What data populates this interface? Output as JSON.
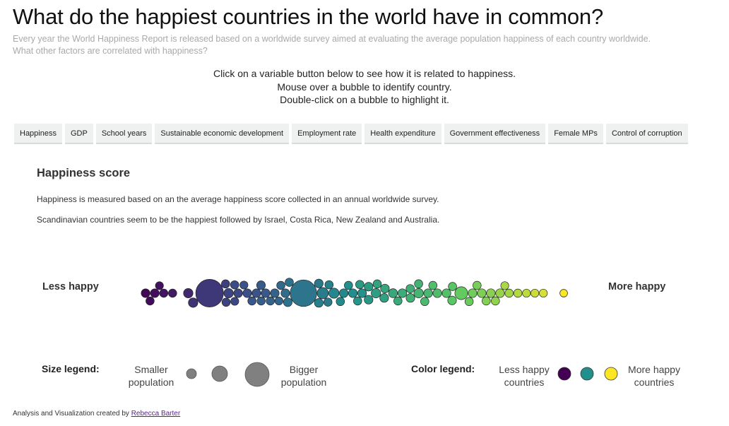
{
  "page": {
    "title": "What do the happiest countries in the world have in common?",
    "subtitle_line1": "Every year the World Happiness Report is released based on a worldwide survey aimed at evaluating the average population happiness of each country worldwide.",
    "subtitle_line2": "What other factors are correlated with happiness?",
    "instructions": [
      "Click on a variable button below to see how it is related to happiness.",
      "Mouse over a bubble to identify country.",
      "Double-click on a bubble to highlight it."
    ]
  },
  "buttons": [
    "Happiness",
    "GDP",
    "School years",
    "Sustainable economic development",
    "Employment rate",
    "Health expenditure",
    "Government effectiveness",
    "Female MPs",
    "Control of corruption"
  ],
  "section": {
    "heading": "Happiness score",
    "desc1": "Happiness is measured based on an the average happiness score collected in an annual worldwide survey.",
    "desc2": "Scandinavian countries seem to be the happiest followed by Israel, Costa Rica, New Zealand and Australia."
  },
  "chart_data": {
    "type": "scatter",
    "variable": "Happiness score",
    "left_label": "Less happy",
    "right_label": "More happy",
    "encoding": {
      "x": "happiness (low to high)",
      "color": "happiness",
      "size": "population"
    },
    "color_scale": [
      "#440154",
      "#3b528b",
      "#21908d",
      "#5dc962",
      "#fde725"
    ],
    "bubbles": [
      {
        "h": 0.02,
        "s": 0.6
      },
      {
        "h": 0.04,
        "s": 0.6
      },
      {
        "h": 0.03,
        "s": 0.55
      },
      {
        "h": 0.06,
        "s": 0.55
      },
      {
        "h": 0.05,
        "s": 0.5
      },
      {
        "h": 0.08,
        "s": 0.55
      },
      {
        "h": 0.17,
        "s": 6.0
      },
      {
        "h": 0.12,
        "s": 0.7
      },
      {
        "h": 0.15,
        "s": 0.7
      },
      {
        "h": 0.19,
        "s": 0.55
      },
      {
        "h": 0.22,
        "s": 0.5
      },
      {
        "h": 0.2,
        "s": 0.55
      },
      {
        "h": 0.22,
        "s": 0.6
      },
      {
        "h": 0.21,
        "s": 0.7
      },
      {
        "h": 0.24,
        "s": 0.6
      },
      {
        "h": 0.23,
        "s": 0.55
      },
      {
        "h": 0.25,
        "s": 0.5
      },
      {
        "h": 0.26,
        "s": 0.6
      },
      {
        "h": 0.27,
        "s": 0.55
      },
      {
        "h": 0.28,
        "s": 0.6
      },
      {
        "h": 0.29,
        "s": 0.6
      },
      {
        "h": 0.3,
        "s": 0.55
      },
      {
        "h": 0.31,
        "s": 0.6
      },
      {
        "h": 0.32,
        "s": 0.55
      },
      {
        "h": 0.33,
        "s": 0.5
      },
      {
        "h": 0.34,
        "s": 0.55
      },
      {
        "h": 0.39,
        "s": 5.5
      },
      {
        "h": 0.36,
        "s": 0.6
      },
      {
        "h": 0.37,
        "s": 0.55
      },
      {
        "h": 0.38,
        "s": 0.6
      },
      {
        "h": 0.4,
        "s": 0.6
      },
      {
        "h": 0.41,
        "s": 0.55
      },
      {
        "h": 0.42,
        "s": 1.0
      },
      {
        "h": 0.43,
        "s": 0.6
      },
      {
        "h": 0.44,
        "s": 0.55
      },
      {
        "h": 0.46,
        "s": 0.8
      },
      {
        "h": 0.47,
        "s": 0.6
      },
      {
        "h": 0.48,
        "s": 0.55
      },
      {
        "h": 0.49,
        "s": 0.6
      },
      {
        "h": 0.5,
        "s": 0.55
      },
      {
        "h": 0.51,
        "s": 0.6
      },
      {
        "h": 0.52,
        "s": 0.55
      },
      {
        "h": 0.53,
        "s": 0.6
      },
      {
        "h": 0.54,
        "s": 0.55
      },
      {
        "h": 0.55,
        "s": 0.6
      },
      {
        "h": 0.56,
        "s": 0.7
      },
      {
        "h": 0.57,
        "s": 0.6
      },
      {
        "h": 0.58,
        "s": 0.55
      },
      {
        "h": 0.59,
        "s": 0.6
      },
      {
        "h": 0.6,
        "s": 0.65
      },
      {
        "h": 0.61,
        "s": 0.55
      },
      {
        "h": 0.62,
        "s": 0.6
      },
      {
        "h": 0.63,
        "s": 0.55
      },
      {
        "h": 0.64,
        "s": 0.6
      },
      {
        "h": 0.65,
        "s": 0.55
      },
      {
        "h": 0.66,
        "s": 0.7
      },
      {
        "h": 0.67,
        "s": 0.6
      },
      {
        "h": 0.68,
        "s": 0.55
      },
      {
        "h": 0.69,
        "s": 0.6
      },
      {
        "h": 0.7,
        "s": 0.55
      },
      {
        "h": 0.71,
        "s": 0.6
      },
      {
        "h": 0.73,
        "s": 0.55
      },
      {
        "h": 0.74,
        "s": 0.6
      },
      {
        "h": 0.76,
        "s": 1.3
      },
      {
        "h": 0.77,
        "s": 0.55
      },
      {
        "h": 0.78,
        "s": 0.6
      },
      {
        "h": 0.79,
        "s": 0.55
      },
      {
        "h": 0.8,
        "s": 0.6
      },
      {
        "h": 0.81,
        "s": 0.55
      },
      {
        "h": 0.82,
        "s": 0.6
      },
      {
        "h": 0.83,
        "s": 0.55
      },
      {
        "h": 0.84,
        "s": 0.6
      },
      {
        "h": 0.86,
        "s": 0.55
      },
      {
        "h": 0.87,
        "s": 0.5
      },
      {
        "h": 0.88,
        "s": 0.55
      },
      {
        "h": 0.9,
        "s": 0.5
      },
      {
        "h": 0.92,
        "s": 0.5
      },
      {
        "h": 0.94,
        "s": 0.5
      },
      {
        "h": 1.0,
        "s": 0.45
      }
    ]
  },
  "legend": {
    "size_title": "Size legend:",
    "smaller": [
      "Smaller",
      "population"
    ],
    "bigger": [
      "Bigger",
      "population"
    ],
    "color_title": "Color legend:",
    "less": [
      "Less happy",
      "countries"
    ],
    "more": [
      "More happy",
      "countries"
    ],
    "size_circle_color": "#808080",
    "color_circles": [
      "#440154",
      "#21908d",
      "#fde725"
    ]
  },
  "footer": {
    "text": "Analysis and Visualization created by ",
    "author": "Rebecca Barter"
  }
}
